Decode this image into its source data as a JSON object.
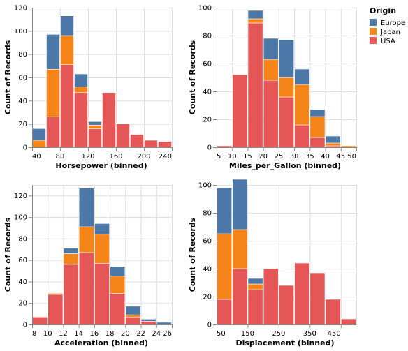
{
  "colors": {
    "Europe": "#4c78a8",
    "Japan": "#f58518",
    "USA": "#e45756"
  },
  "legend": {
    "title": "Origin",
    "entries": [
      "Europe",
      "Japan",
      "USA"
    ],
    "placement": "top-right"
  },
  "chart_data": [
    {
      "type": "bar",
      "stacked": true,
      "xlabel": "Horsepower (binned)",
      "ylabel": "Count of Records",
      "xlim": [
        40,
        240
      ],
      "ylim": [
        0,
        120
      ],
      "xticks": [
        40,
        80,
        120,
        160,
        200,
        240
      ],
      "yticks": [
        0,
        20,
        40,
        60,
        80,
        100,
        120
      ],
      "grid": true,
      "bins": [
        [
          40,
          60
        ],
        [
          60,
          80
        ],
        [
          80,
          100
        ],
        [
          100,
          120
        ],
        [
          120,
          140
        ],
        [
          140,
          160
        ],
        [
          160,
          180
        ],
        [
          180,
          200
        ],
        [
          200,
          220
        ],
        [
          220,
          240
        ]
      ],
      "series": [
        {
          "name": "USA",
          "values": [
            0,
            26,
            71,
            47,
            16,
            47,
            20,
            11,
            6,
            5
          ]
        },
        {
          "name": "Japan",
          "values": [
            6,
            41,
            25,
            5,
            3,
            0,
            0,
            0,
            0,
            0
          ]
        },
        {
          "name": "Europe",
          "values": [
            10,
            30,
            17,
            11,
            3,
            0,
            0,
            0,
            0,
            0
          ]
        }
      ]
    },
    {
      "type": "bar",
      "stacked": true,
      "xlabel": "Miles_per_Gallon (binned)",
      "ylabel": "Count of Records",
      "xlim": [
        5,
        50
      ],
      "ylim": [
        0,
        100
      ],
      "xticks": [
        5,
        10,
        15,
        20,
        25,
        30,
        35,
        40,
        45,
        50
      ],
      "yticks": [
        0,
        20,
        40,
        60,
        80,
        100
      ],
      "grid": true,
      "bins": [
        [
          5,
          10
        ],
        [
          10,
          15
        ],
        [
          15,
          20
        ],
        [
          20,
          25
        ],
        [
          25,
          30
        ],
        [
          30,
          35
        ],
        [
          35,
          40
        ],
        [
          40,
          45
        ],
        [
          45,
          50
        ]
      ],
      "series": [
        {
          "name": "USA",
          "values": [
            1,
            52,
            89,
            48,
            36,
            16,
            7,
            1,
            0
          ]
        },
        {
          "name": "Japan",
          "values": [
            0,
            0,
            3,
            15,
            14,
            29,
            15,
            2,
            1
          ]
        },
        {
          "name": "Europe",
          "values": [
            0,
            0,
            6,
            15,
            27,
            11,
            5,
            5,
            0
          ]
        }
      ]
    },
    {
      "type": "bar",
      "stacked": true,
      "xlabel": "Acceleration (binned)",
      "ylabel": "Count of Records",
      "xlim": [
        8,
        26
      ],
      "ylim": [
        0,
        130
      ],
      "xticks": [
        8,
        10,
        12,
        14,
        16,
        18,
        20,
        22,
        24,
        26
      ],
      "yticks": [
        0,
        20,
        40,
        60,
        80,
        100,
        120
      ],
      "grid": true,
      "bins": [
        [
          8,
          10
        ],
        [
          10,
          12
        ],
        [
          12,
          14
        ],
        [
          14,
          16
        ],
        [
          16,
          18
        ],
        [
          18,
          20
        ],
        [
          20,
          22
        ],
        [
          22,
          24
        ],
        [
          24,
          26
        ]
      ],
      "series": [
        {
          "name": "USA",
          "values": [
            7,
            28,
            56,
            67,
            57,
            29,
            7,
            3,
            0
          ]
        },
        {
          "name": "Japan",
          "values": [
            0,
            1,
            10,
            24,
            27,
            16,
            2,
            0,
            0
          ]
        },
        {
          "name": "Europe",
          "values": [
            0,
            0,
            5,
            36,
            10,
            9,
            8,
            2,
            2
          ]
        }
      ]
    },
    {
      "type": "bar",
      "stacked": true,
      "xlabel": "Displacement (binned)",
      "ylabel": "Count of Records",
      "xlim": [
        50,
        500
      ],
      "ylim": [
        0,
        100
      ],
      "xticks": [
        50,
        150,
        250,
        350,
        450
      ],
      "yticks": [
        0,
        20,
        40,
        60,
        80,
        100
      ],
      "grid": true,
      "bins": [
        [
          50,
          100
        ],
        [
          100,
          150
        ],
        [
          150,
          200
        ],
        [
          200,
          250
        ],
        [
          250,
          300
        ],
        [
          300,
          350
        ],
        [
          350,
          400
        ],
        [
          400,
          450
        ],
        [
          450,
          500
        ]
      ],
      "series": [
        {
          "name": "USA",
          "values": [
            18,
            40,
            25,
            40,
            28,
            44,
            37,
            18,
            4
          ]
        },
        {
          "name": "Japan",
          "values": [
            47,
            28,
            4,
            0,
            0,
            0,
            0,
            0,
            0
          ]
        },
        {
          "name": "Europe",
          "values": [
            33,
            36,
            4,
            0,
            0,
            0,
            0,
            0,
            0
          ]
        }
      ]
    }
  ]
}
